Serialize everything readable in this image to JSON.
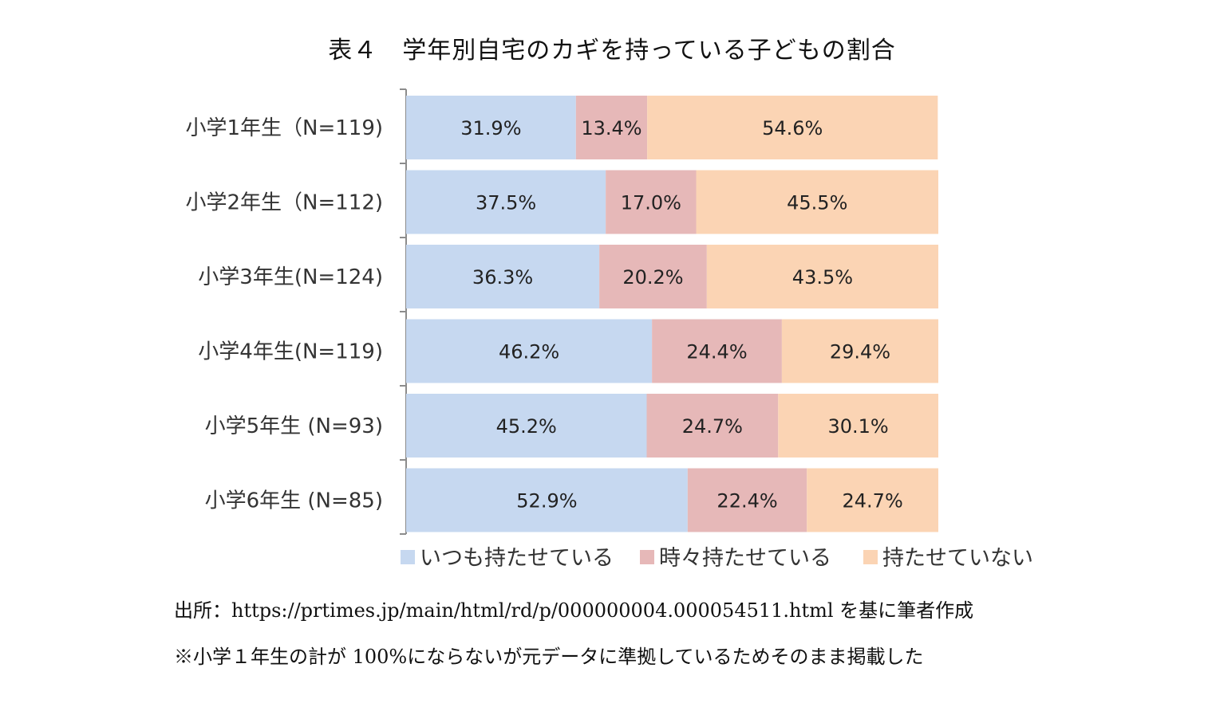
{
  "title": "表４　学年別自宅のカギを持っている子どもの割合",
  "notes": {
    "source": "出所：https://prtimes.jp/main/html/rd/p/000000004.000054511.html を基に筆者作成",
    "remark": "※小学１年生の計が 100%にならないが元データに準拠しているためそのまま掲載した"
  },
  "colors": {
    "always": "#c6d8f0",
    "sometimes": "#e6b8b8",
    "never": "#fbd4b4",
    "axis": "#8c8c8c"
  },
  "chart_data": {
    "type": "bar",
    "orientation": "horizontal",
    "stacked": true,
    "title": "",
    "xlabel": "",
    "ylabel": "",
    "xlim": [
      0,
      100
    ],
    "grid": false,
    "legend_position": "bottom",
    "categories": [
      "小学1年生（N=119)",
      "小学2年生（N=112)",
      "小学3年生(N=124)",
      "小学4年生(N=119)",
      "小学5年生 (N=93)",
      "小学6年生 (N=85)"
    ],
    "series": [
      {
        "name": "いつも持たせている",
        "values": [
          31.9,
          37.5,
          36.3,
          46.2,
          45.2,
          52.9
        ],
        "labels": [
          "31.9%",
          "37.5%",
          "36.3%",
          "46.2%",
          "45.2%",
          "52.9%"
        ]
      },
      {
        "name": "時々持たせている",
        "values": [
          13.4,
          17.0,
          20.2,
          24.4,
          24.7,
          22.4
        ],
        "labels": [
          "13.4%",
          "17.0%",
          "20.2%",
          "24.4%",
          "24.7%",
          "22.4%"
        ]
      },
      {
        "name": "持たせていない",
        "values": [
          54.6,
          45.5,
          43.5,
          29.4,
          30.1,
          24.7
        ],
        "labels": [
          "54.6%",
          "45.5%",
          "43.5%",
          "29.4%",
          "30.1%",
          "24.7%"
        ]
      }
    ]
  }
}
